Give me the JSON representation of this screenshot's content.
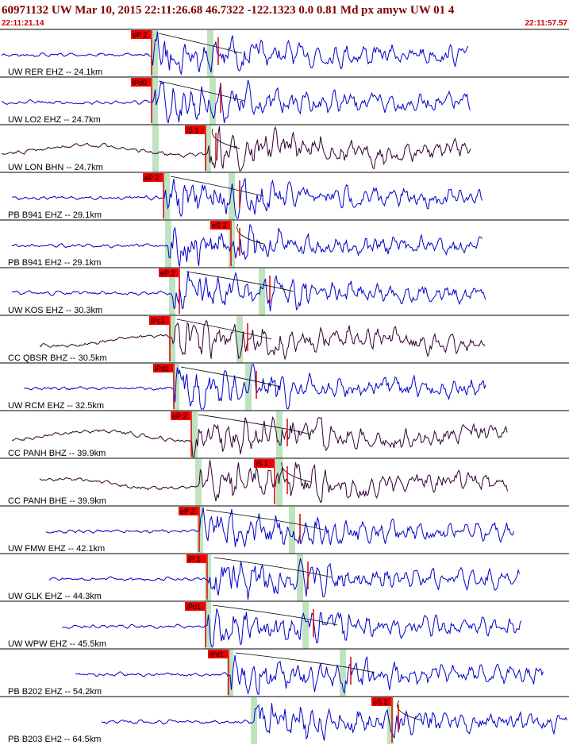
{
  "header": {
    "title": "60971132 UW Mar 10, 2015 22:11:26.68   46.7322 -122.1323  0.0 0.81 Md px amyw UW 01   4",
    "start_time": "22:11:21.14",
    "end_time": "22:11:57.57"
  },
  "traces": [
    {
      "label": "UW RER EHZ -- 24.1km",
      "pick": "eP 2"
    },
    {
      "label": "UW LO2 EHZ -- 24.7km",
      "pick": "iPd0"
    },
    {
      "label": "UW LON BHN -- 24.7km",
      "pick": "iS 1"
    },
    {
      "label": "PB B941 EHZ -- 29.1km",
      "pick": "eP 2"
    },
    {
      "label": "PB B941 EH2 -- 29.1km",
      "pick": "eS 2"
    },
    {
      "label": "UW KOS EHZ -- 30.3km",
      "pick": "eP 2"
    },
    {
      "label": "CC QBSR BHZ -- 30.5km",
      "pick": "iPc1"
    },
    {
      "label": "UW RCM EHZ -- 32.5km",
      "pick": "iPd1"
    },
    {
      "label": "CC PANH BHZ -- 39.9km",
      "pick": "eP 2"
    },
    {
      "label": "CC PANH BHE -- 39.9km",
      "pick": "iS 1"
    },
    {
      "label": "UW FMW EHZ -- 42.1km",
      "pick": "eP 2"
    },
    {
      "label": "UW GLK EHZ -- 44.3km",
      "pick": "iP 1"
    },
    {
      "label": "UW WPW EHZ -- 45.5km",
      "pick": "iPd1"
    },
    {
      "label": "PB B202 EHZ -- 54.2km",
      "pick": "iPd1"
    },
    {
      "label": "PB B203 EH2 -- 64.5km",
      "pick": "eS 2"
    }
  ]
}
